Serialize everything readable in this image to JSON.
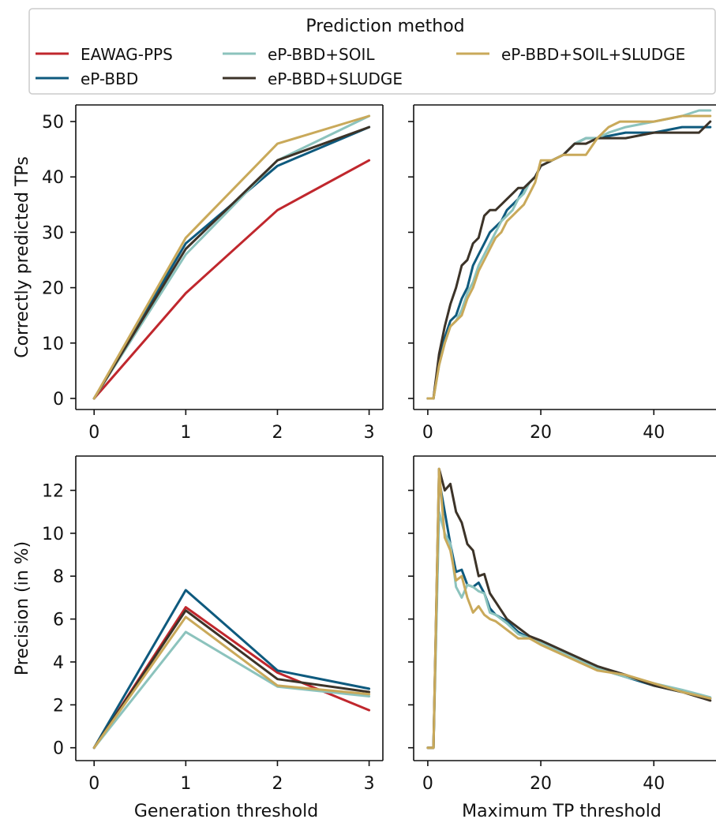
{
  "legend": {
    "title": "Prediction method",
    "entries": [
      {
        "label": "EAWAG-PPS",
        "color": "#c0272d"
      },
      {
        "label": "eP-BBD",
        "color": "#0e5a7e"
      },
      {
        "label": "eP-BBD+SOIL",
        "color": "#8cc3bd"
      },
      {
        "label": "eP-BBD+SLUDGE",
        "color": "#3c3328"
      },
      {
        "label": "eP-BBD+SOIL+SLUDGE",
        "color": "#c9a95a"
      }
    ]
  },
  "chart_data": [
    {
      "type": "line",
      "panel": "top-left",
      "xlabel": "",
      "ylabel": "Correctly predicted TPs",
      "xlim": [
        -0.2,
        3.15
      ],
      "ylim": [
        -2,
        53
      ],
      "xticks": [
        0,
        1,
        2,
        3
      ],
      "yticks": [
        0,
        10,
        20,
        30,
        40,
        50
      ],
      "grid": false,
      "series": [
        {
          "name": "EAWAG-PPS",
          "x": [
            0,
            1,
            2,
            3
          ],
          "y": [
            0,
            19,
            34,
            43
          ]
        },
        {
          "name": "eP-BBD",
          "x": [
            0,
            1,
            2,
            3
          ],
          "y": [
            0,
            28,
            42,
            49
          ]
        },
        {
          "name": "eP-BBD+SOIL",
          "x": [
            0,
            1,
            2,
            3
          ],
          "y": [
            0,
            26,
            43,
            51
          ]
        },
        {
          "name": "eP-BBD+SLUDGE",
          "x": [
            0,
            1,
            2,
            3
          ],
          "y": [
            0,
            27,
            43,
            49
          ]
        },
        {
          "name": "eP-BBD+SOIL+SLUDGE",
          "x": [
            0,
            1,
            2,
            3
          ],
          "y": [
            0,
            29,
            46,
            51
          ]
        }
      ]
    },
    {
      "type": "line",
      "panel": "top-right",
      "xlabel": "",
      "ylabel": "",
      "xlim": [
        -2.5,
        51
      ],
      "ylim": [
        -2,
        53
      ],
      "xticks": [
        0,
        20,
        40
      ],
      "yticks": [
        0,
        10,
        20,
        30,
        40,
        50
      ],
      "show_y_tick_labels": false,
      "grid": false,
      "series": [
        {
          "name": "eP-BBD",
          "x": [
            0,
            1,
            2,
            3,
            4,
            5,
            6,
            7,
            8,
            9,
            10,
            11,
            12,
            13,
            14,
            15,
            16,
            17,
            18,
            19,
            20,
            22,
            24,
            26,
            28,
            30,
            35,
            40,
            45,
            50
          ],
          "y": [
            0,
            0,
            7,
            11,
            14,
            15,
            18,
            20,
            24,
            26,
            28,
            30,
            31,
            32,
            34,
            35,
            36,
            38,
            39,
            40,
            42,
            43,
            44,
            46,
            47,
            47,
            48,
            48,
            49,
            49
          ]
        },
        {
          "name": "eP-BBD+SOIL",
          "x": [
            0,
            1,
            2,
            3,
            4,
            5,
            6,
            7,
            8,
            9,
            10,
            11,
            12,
            13,
            14,
            15,
            16,
            17,
            18,
            19,
            20,
            22,
            24,
            26,
            28,
            30,
            32,
            35,
            40,
            45,
            48,
            50
          ],
          "y": [
            0,
            0,
            6,
            10,
            13,
            14,
            16,
            19,
            21,
            24,
            26,
            28,
            30,
            32,
            33,
            34,
            36,
            37,
            39,
            40,
            42,
            43,
            44,
            46,
            47,
            47,
            48,
            49,
            50,
            51,
            52,
            52
          ]
        },
        {
          "name": "eP-BBD+SLUDGE",
          "x": [
            0,
            1,
            2,
            3,
            4,
            5,
            6,
            7,
            8,
            9,
            10,
            11,
            12,
            13,
            14,
            15,
            16,
            17,
            18,
            19,
            20,
            22,
            24,
            26,
            28,
            30,
            32,
            35,
            40,
            45,
            48,
            50
          ],
          "y": [
            0,
            0,
            8,
            13,
            17,
            20,
            24,
            25,
            28,
            29,
            33,
            34,
            34,
            35,
            36,
            37,
            38,
            38,
            39,
            40,
            42,
            43,
            44,
            46,
            46,
            47,
            47,
            47,
            48,
            48,
            48,
            50
          ]
        },
        {
          "name": "eP-BBD+SOIL+SLUDGE",
          "x": [
            0,
            1,
            2,
            3,
            4,
            5,
            6,
            7,
            8,
            9,
            10,
            11,
            12,
            13,
            14,
            15,
            16,
            17,
            18,
            19,
            20,
            22,
            24,
            26,
            28,
            30,
            32,
            34,
            36,
            40,
            45,
            50
          ],
          "y": [
            0,
            0,
            6,
            10,
            13,
            14,
            15,
            18,
            20,
            23,
            25,
            27,
            29,
            30,
            32,
            33,
            34,
            35,
            37,
            39,
            43,
            43,
            44,
            44,
            44,
            47,
            49,
            50,
            50,
            50,
            51,
            51
          ]
        }
      ]
    },
    {
      "type": "line",
      "panel": "bottom-left",
      "xlabel": "Generation threshold",
      "ylabel": "Precision (in %)",
      "xlim": [
        -0.2,
        3.15
      ],
      "ylim": [
        -0.6,
        13.6
      ],
      "xticks": [
        0,
        1,
        2,
        3
      ],
      "yticks": [
        0,
        2,
        4,
        6,
        8,
        10,
        12
      ],
      "grid": false,
      "series": [
        {
          "name": "EAWAG-PPS",
          "x": [
            0,
            1,
            2,
            3
          ],
          "y": [
            0,
            6.55,
            3.5,
            1.75
          ]
        },
        {
          "name": "eP-BBD",
          "x": [
            0,
            1,
            2,
            3
          ],
          "y": [
            0,
            7.35,
            3.6,
            2.75
          ]
        },
        {
          "name": "eP-BBD+SOIL",
          "x": [
            0,
            1,
            2,
            3
          ],
          "y": [
            0,
            5.4,
            2.85,
            2.4
          ]
        },
        {
          "name": "eP-BBD+SLUDGE",
          "x": [
            0,
            1,
            2,
            3
          ],
          "y": [
            0,
            6.4,
            3.2,
            2.6
          ]
        },
        {
          "name": "eP-BBD+SOIL+SLUDGE",
          "x": [
            0,
            1,
            2,
            3
          ],
          "y": [
            0,
            6.1,
            2.9,
            2.5
          ]
        }
      ]
    },
    {
      "type": "line",
      "panel": "bottom-right",
      "xlabel": "Maximum TP threshold",
      "ylabel": "",
      "xlim": [
        -2.5,
        51
      ],
      "ylim": [
        -0.6,
        13.6
      ],
      "xticks": [
        0,
        20,
        40
      ],
      "yticks": [
        0,
        2,
        4,
        6,
        8,
        10,
        12
      ],
      "show_y_tick_labels": false,
      "grid": false,
      "series": [
        {
          "name": "eP-BBD",
          "x": [
            0,
            1,
            2,
            3,
            4,
            5,
            6,
            7,
            8,
            9,
            10,
            11,
            12,
            14,
            16,
            18,
            20,
            25,
            30,
            35,
            40,
            45,
            50
          ],
          "y": [
            0,
            0,
            12.5,
            11,
            9.5,
            8.2,
            8.3,
            7.6,
            7.5,
            7.7,
            7.2,
            6.5,
            6.2,
            5.9,
            5.4,
            5.1,
            4.9,
            4.3,
            3.7,
            3.3,
            2.9,
            2.6,
            2.3
          ]
        },
        {
          "name": "eP-BBD+SOIL",
          "x": [
            0,
            1,
            2,
            3,
            4,
            5,
            6,
            7,
            8,
            9,
            10,
            11,
            12,
            14,
            16,
            18,
            20,
            25,
            30,
            35,
            40,
            45,
            50
          ],
          "y": [
            0,
            0,
            11,
            10,
            9.5,
            7.5,
            7.0,
            7.6,
            7.5,
            7.3,
            7.2,
            6.3,
            6.2,
            5.8,
            5.3,
            5.1,
            4.9,
            4.3,
            3.7,
            3.3,
            3.0,
            2.7,
            2.35
          ]
        },
        {
          "name": "eP-BBD+SLUDGE",
          "x": [
            0,
            1,
            2,
            3,
            4,
            5,
            6,
            7,
            8,
            9,
            10,
            11,
            12,
            14,
            16,
            18,
            20,
            25,
            30,
            35,
            40,
            45,
            50
          ],
          "y": [
            0,
            0,
            13.0,
            12.0,
            12.3,
            11.0,
            10.5,
            9.5,
            9.2,
            8.0,
            8.1,
            7.2,
            6.8,
            6.0,
            5.6,
            5.2,
            5.0,
            4.4,
            3.8,
            3.4,
            2.9,
            2.6,
            2.2
          ]
        },
        {
          "name": "eP-BBD+SOIL+SLUDGE",
          "x": [
            0,
            1,
            2,
            3,
            4,
            5,
            6,
            7,
            8,
            9,
            10,
            11,
            12,
            14,
            16,
            18,
            20,
            25,
            30,
            35,
            40,
            45,
            50
          ],
          "y": [
            0,
            0,
            13.0,
            9.8,
            9.2,
            7.8,
            8.0,
            7.0,
            6.3,
            6.6,
            6.2,
            6.0,
            5.9,
            5.5,
            5.1,
            5.1,
            4.8,
            4.2,
            3.6,
            3.4,
            3.0,
            2.6,
            2.3
          ]
        }
      ]
    }
  ]
}
